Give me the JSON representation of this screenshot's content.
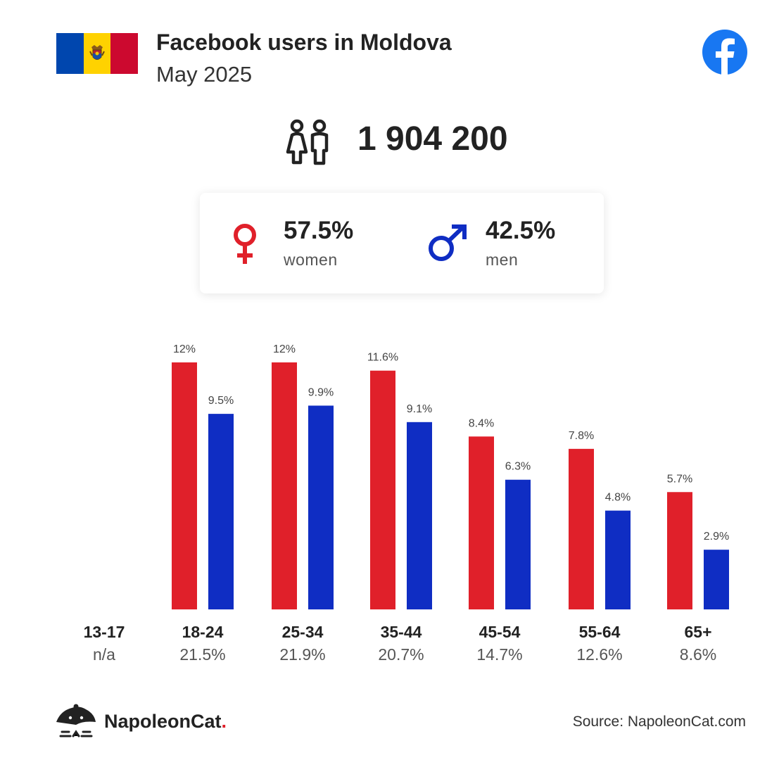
{
  "header": {
    "title": "Facebook users in Moldova",
    "subtitle": "May 2025"
  },
  "flag": {
    "colors": [
      "#0046ae",
      "#ffd200",
      "#cc092f"
    ]
  },
  "total_users": "1 904 200",
  "gender": {
    "women": {
      "percent": "57.5%",
      "label": "women",
      "color": "#e0202a"
    },
    "men": {
      "percent": "42.5%",
      "label": "men",
      "color": "#0f2dc3"
    }
  },
  "icons": {
    "users": "people-icon",
    "women": "female-symbol-icon",
    "men": "male-symbol-icon",
    "facebook": "facebook-icon",
    "brand": "napoleoncat-logo-icon"
  },
  "chart_data": {
    "type": "bar",
    "categories": [
      "13-17",
      "18-24",
      "25-34",
      "35-44",
      "45-54",
      "55-64",
      "65+"
    ],
    "totals": [
      "n/a",
      "21.5%",
      "21.9%",
      "20.7%",
      "14.7%",
      "12.6%",
      "8.6%"
    ],
    "series": [
      {
        "color": "#e0202a",
        "values": [
          null,
          12,
          12,
          11.6,
          8.4,
          7.8,
          5.7
        ],
        "labels": [
          "",
          "12%",
          "12%",
          "11.6%",
          "8.4%",
          "7.8%",
          "5.7%"
        ]
      },
      {
        "color": "#0f2dc3",
        "values": [
          null,
          9.5,
          9.9,
          9.1,
          6.3,
          4.8,
          2.9
        ],
        "labels": [
          "",
          "9.5%",
          "9.9%",
          "9.1%",
          "6.3%",
          "4.8%",
          "2.9%"
        ]
      }
    ],
    "ylim": [
      0,
      12
    ],
    "grid": false
  },
  "footer": {
    "brand": "NapoleonCat",
    "brand_dot": ".",
    "source": "Source: NapoleonCat.com"
  }
}
